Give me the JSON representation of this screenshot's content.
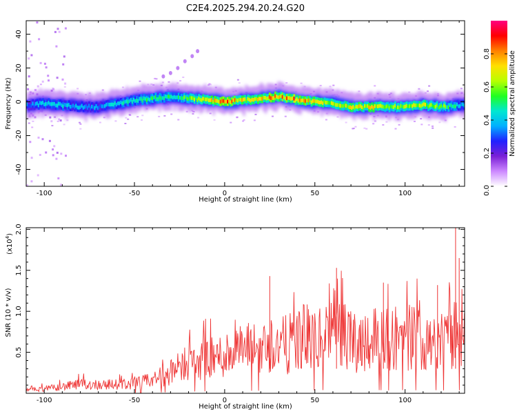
{
  "title": "C2E4.2025.294.20.24.G20",
  "chart_data": [
    {
      "type": "heatmap",
      "name": "spectrogram",
      "xlabel": "Height of straight line (km)",
      "ylabel": "Frequency (Hz)",
      "xlim": [
        -110,
        133
      ],
      "ylim": [
        -50,
        48
      ],
      "xticks": [
        -100,
        -50,
        0,
        50,
        100
      ],
      "xtick_labels": [
        "-100",
        "-50",
        "0",
        "50",
        "100"
      ],
      "yticks": [
        -40,
        -20,
        0,
        20,
        40
      ],
      "ytick_labels": [
        "-40",
        "-20",
        "0",
        "20",
        "40"
      ],
      "grid": false,
      "ridge": {
        "x": [
          -110,
          -100,
          -90,
          -80,
          -70,
          -60,
          -50,
          -40,
          -30,
          -20,
          -10,
          0,
          10,
          20,
          30,
          40,
          50,
          60,
          70,
          80,
          90,
          100,
          110,
          120,
          130,
          133
        ],
        "y": [
          -2,
          -1,
          -2,
          -3,
          -3,
          -1,
          1,
          2,
          3,
          2,
          1,
          0,
          1,
          2,
          3,
          1,
          0,
          -1,
          -3,
          -3,
          -3,
          -3,
          -2,
          -3,
          -2,
          -2
        ],
        "amplitude": [
          0.35,
          0.45,
          0.45,
          0.4,
          0.4,
          0.45,
          0.5,
          0.55,
          0.55,
          0.6,
          0.75,
          0.9,
          0.75,
          0.8,
          0.85,
          0.9,
          0.75,
          0.7,
          0.75,
          0.75,
          0.7,
          0.7,
          0.7,
          0.65,
          0.45,
          0.4
        ]
      },
      "streak": {
        "x": [
          -34,
          -30,
          -26,
          -22,
          -18,
          -15
        ],
        "y": [
          15,
          17,
          20,
          24,
          27,
          30
        ]
      },
      "colorbar": {
        "label": "Normalized spectral amplitude",
        "range": [
          0,
          1
        ],
        "ticks": [
          0.0,
          0.2,
          0.4,
          0.6,
          0.8
        ],
        "tick_labels": [
          "0.0",
          "0.2",
          "0.4",
          "0.6",
          "0.8"
        ],
        "colormap": [
          "#ffffff",
          "#cc88ff",
          "#7a1fd6",
          "#2020ff",
          "#00b0ff",
          "#00e8d0",
          "#20ff20",
          "#b8ff00",
          "#ffe000",
          "#ff8000",
          "#ff0000",
          "#ff0080"
        ]
      }
    },
    {
      "type": "line",
      "name": "snr",
      "xlabel": "Height of straight line (km)",
      "ylabel": "SNR (10 * v/v)",
      "exponent_label": "(x10",
      "exponent_power": "4",
      "exponent_close": ")",
      "xlim": [
        -110,
        133
      ],
      "ylim": [
        0,
        2.02
      ],
      "xticks": [
        -100,
        -50,
        0,
        50,
        100
      ],
      "xtick_labels": [
        "-100",
        "-50",
        "0",
        "50",
        "100"
      ],
      "yticks": [
        0.5,
        1.0,
        1.5,
        2.0
      ],
      "ytick_labels": [
        "0.5",
        "1.0",
        "1.5",
        "2.0"
      ],
      "series": [
        {
          "name": "SNR",
          "color": "#ee3333",
          "x": [
            -110,
            -100,
            -90,
            -80,
            -70,
            -60,
            -50,
            -40,
            -35,
            -30,
            -25,
            -20,
            -15,
            -10,
            -5,
            0,
            5,
            10,
            15,
            20,
            25,
            30,
            35,
            40,
            45,
            50,
            55,
            60,
            62,
            65,
            70,
            75,
            80,
            85,
            90,
            95,
            100,
            105,
            110,
            115,
            120,
            125,
            128,
            130,
            133
          ],
          "y": [
            0.04,
            0.06,
            0.09,
            0.12,
            0.12,
            0.12,
            0.13,
            0.18,
            0.22,
            0.28,
            0.35,
            0.45,
            0.42,
            0.46,
            0.48,
            0.52,
            0.58,
            0.58,
            0.6,
            0.62,
            0.66,
            0.66,
            0.66,
            0.72,
            0.78,
            0.72,
            0.78,
            0.86,
            1.05,
            0.8,
            0.7,
            0.72,
            0.74,
            0.78,
            0.72,
            0.76,
            0.78,
            0.74,
            0.75,
            0.8,
            0.7,
            0.72,
            0.8,
            0.75,
            0.7
          ]
        }
      ]
    }
  ]
}
